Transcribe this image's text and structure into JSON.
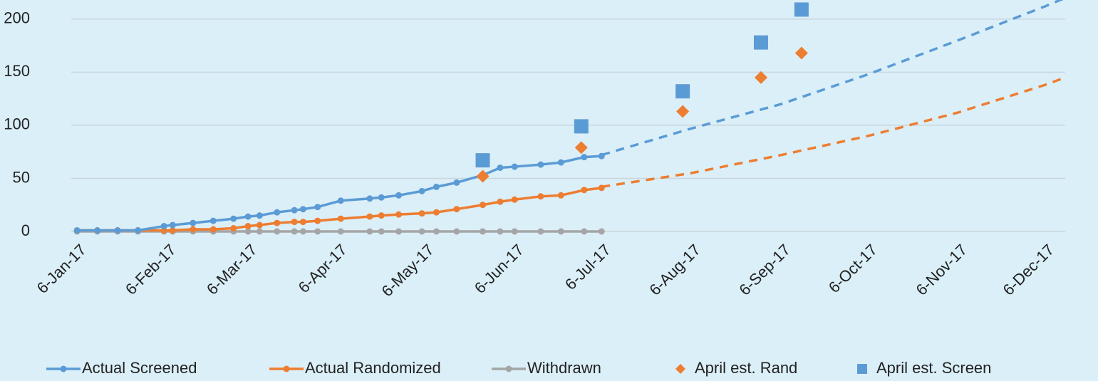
{
  "chart_data": {
    "type": "line",
    "x": [
      "2017-01-06",
      "2017-01-13",
      "2017-01-20",
      "2017-01-27",
      "2017-02-05",
      "2017-02-08",
      "2017-02-15",
      "2017-02-22",
      "2017-03-01",
      "2017-03-06",
      "2017-03-10",
      "2017-03-16",
      "2017-03-22",
      "2017-03-25",
      "2017-03-30",
      "2017-04-07",
      "2017-04-17",
      "2017-04-21",
      "2017-04-27",
      "2017-05-05",
      "2017-05-10",
      "2017-05-17",
      "2017-05-26",
      "2017-06-01",
      "2017-06-06",
      "2017-06-15",
      "2017-06-22",
      "2017-06-30",
      "2017-07-06"
    ],
    "series": [
      {
        "name": "Actual Screened",
        "color": "#5b9bd5",
        "values": [
          1,
          1,
          1,
          1,
          5,
          6,
          8,
          10,
          12,
          14,
          15,
          18,
          20,
          21,
          23,
          29,
          31,
          32,
          34,
          38,
          42,
          46,
          53,
          60,
          61,
          63,
          65,
          70,
          71
        ]
      },
      {
        "name": "Actual Randomized",
        "color": "#ed7d31",
        "values": [
          1,
          1,
          1,
          1,
          1,
          1,
          2,
          2,
          3,
          5,
          6,
          8,
          9,
          9,
          10,
          12,
          14,
          15,
          16,
          17,
          18,
          21,
          25,
          28,
          30,
          33,
          34,
          39,
          41
        ]
      },
      {
        "name": "Withdrawn",
        "color": "#a5a5a5",
        "values": [
          0,
          0,
          0,
          0,
          0,
          0,
          0,
          0,
          0,
          0,
          0,
          0,
          0,
          0,
          0,
          0,
          0,
          0,
          0,
          0,
          0,
          0,
          0,
          0,
          0,
          0,
          0,
          0,
          0
        ]
      }
    ],
    "scatter_series": [
      {
        "name": "April est. Rand",
        "color": "#ed7d31",
        "marker": "diamond",
        "x": [
          "2017-05-26",
          "2017-06-29",
          "2017-08-03",
          "2017-08-30",
          "2017-09-13"
        ],
        "values": [
          52,
          79,
          113,
          145,
          168
        ]
      },
      {
        "name": "April est. Screen",
        "color": "#5b9bd5",
        "marker": "square",
        "x": [
          "2017-05-26",
          "2017-06-29",
          "2017-08-03",
          "2017-08-30",
          "2017-09-13"
        ],
        "values": [
          67,
          99,
          132,
          178,
          209
        ]
      }
    ],
    "trendlines": [
      {
        "color": "#5b9bd5",
        "x": [
          "2017-07-06",
          "2017-08-06",
          "2017-09-06",
          "2017-10-06",
          "2017-11-06",
          "2017-12-06",
          "2017-12-13"
        ],
        "values": [
          72,
          97,
          120,
          148,
          180,
          212,
          220
        ]
      },
      {
        "color": "#ed7d31",
        "x": [
          "2017-07-06",
          "2017-08-06",
          "2017-09-06",
          "2017-10-06",
          "2017-11-06",
          "2017-12-06",
          "2017-12-13"
        ],
        "values": [
          42,
          55,
          72,
          90,
          112,
          138,
          145
        ]
      }
    ],
    "xlim": [
      "2017-01-04",
      "2017-12-13"
    ],
    "xticks": [
      {
        "value": "2017-01-06",
        "label": "6-Jan-17"
      },
      {
        "value": "2017-02-06",
        "label": "6-Feb-17"
      },
      {
        "value": "2017-03-06",
        "label": "6-Mar-17"
      },
      {
        "value": "2017-04-06",
        "label": "6-Apr-17"
      },
      {
        "value": "2017-05-06",
        "label": "6-May-17"
      },
      {
        "value": "2017-06-06",
        "label": "6-Jun-17"
      },
      {
        "value": "2017-07-06",
        "label": "6-Jul-17"
      },
      {
        "value": "2017-08-06",
        "label": "6-Aug-17"
      },
      {
        "value": "2017-09-06",
        "label": "6-Sep-17"
      },
      {
        "value": "2017-10-06",
        "label": "6-Oct-17"
      },
      {
        "value": "2017-11-06",
        "label": "6-Nov-17"
      },
      {
        "value": "2017-12-06",
        "label": "6-Dec-17"
      }
    ],
    "ylim": [
      0,
      218
    ],
    "yticks": [
      0,
      50,
      100,
      150,
      200
    ],
    "grid": true,
    "legend": "bottom"
  }
}
